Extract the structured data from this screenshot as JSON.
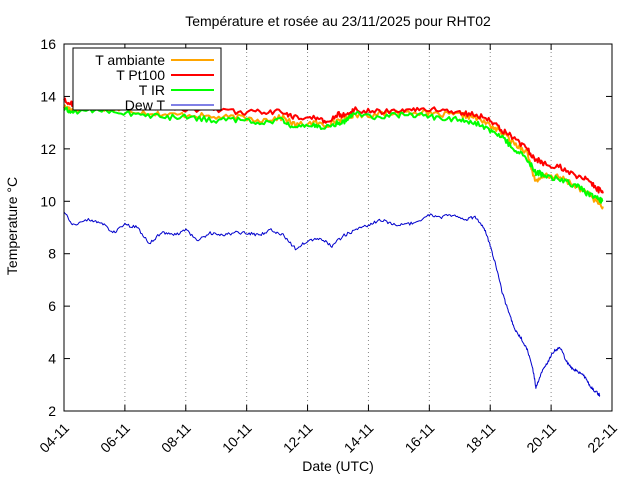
{
  "chart_data": {
    "type": "line",
    "title": "Température et rosée au 23/11/2025 pour RHT02",
    "xlabel": "Date (UTC)",
    "ylabel": "Temperature °C",
    "xlim": [
      4,
      22
    ],
    "ylim": [
      2,
      16
    ],
    "x_ticks": [
      {
        "value": 4,
        "label": "04-11"
      },
      {
        "value": 6,
        "label": "06-11"
      },
      {
        "value": 8,
        "label": "08-11"
      },
      {
        "value": 10,
        "label": "10-11"
      },
      {
        "value": 12,
        "label": "12-11"
      },
      {
        "value": 14,
        "label": "14-11"
      },
      {
        "value": 16,
        "label": "16-11"
      },
      {
        "value": 18,
        "label": "18-11"
      },
      {
        "value": 20,
        "label": "20-11"
      },
      {
        "value": 22,
        "label": "22-11"
      }
    ],
    "y_ticks": [
      {
        "value": 2,
        "label": "2"
      },
      {
        "value": 4,
        "label": "4"
      },
      {
        "value": 6,
        "label": "6"
      },
      {
        "value": 8,
        "label": "8"
      },
      {
        "value": 10,
        "label": "10"
      },
      {
        "value": 12,
        "label": "12"
      },
      {
        "value": 14,
        "label": "14"
      },
      {
        "value": 16,
        "label": "16"
      }
    ],
    "legend_position": "top-left",
    "series": [
      {
        "name": "T ambiante",
        "color": "#ffa500",
        "x": [
          4.0,
          4.3,
          5.0,
          5.8,
          6.6,
          7.4,
          8.2,
          9.0,
          9.8,
          10.5,
          11.2,
          11.6,
          12.2,
          12.6,
          13.0,
          13.3,
          13.5,
          14.2,
          15.0,
          15.6,
          16.3,
          17.0,
          17.5,
          18.0,
          18.4,
          18.8,
          19.2,
          19.5,
          19.8,
          20.3,
          20.8,
          21.2,
          21.5,
          21.7
        ],
        "values": [
          13.6,
          13.5,
          13.6,
          13.5,
          13.4,
          13.3,
          13.3,
          13.2,
          13.2,
          13.1,
          13.2,
          12.9,
          13.0,
          12.9,
          13.1,
          13.2,
          13.3,
          13.3,
          13.4,
          13.4,
          13.3,
          13.3,
          13.2,
          12.9,
          12.6,
          12.2,
          11.9,
          10.7,
          11.0,
          10.9,
          10.6,
          10.3,
          10.0,
          9.8
        ]
      },
      {
        "name": "T Pt100",
        "color": "#ff0000",
        "x": [
          4.0,
          4.3,
          5.0,
          5.8,
          6.6,
          7.4,
          8.2,
          9.0,
          9.8,
          10.5,
          11.2,
          11.6,
          12.2,
          12.6,
          13.0,
          13.3,
          13.5,
          14.2,
          15.0,
          15.6,
          16.3,
          17.0,
          17.5,
          18.0,
          18.4,
          18.8,
          19.2,
          19.5,
          19.8,
          20.3,
          20.8,
          21.2,
          21.5,
          21.7
        ],
        "values": [
          13.9,
          13.7,
          13.8,
          13.7,
          13.6,
          13.6,
          13.5,
          13.5,
          13.4,
          13.4,
          13.4,
          13.2,
          13.2,
          13.0,
          13.3,
          13.3,
          13.5,
          13.4,
          13.5,
          13.5,
          13.5,
          13.4,
          13.3,
          13.1,
          12.7,
          12.4,
          12.0,
          11.6,
          11.4,
          11.3,
          11.0,
          10.8,
          10.5,
          10.3
        ]
      },
      {
        "name": "T IR",
        "color": "#00ff00",
        "x": [
          4.0,
          4.3,
          5.0,
          5.8,
          6.6,
          7.4,
          8.2,
          9.0,
          9.8,
          10.5,
          11.2,
          11.6,
          12.2,
          12.6,
          13.0,
          13.3,
          13.5,
          14.2,
          15.0,
          15.6,
          16.3,
          17.0,
          17.5,
          18.0,
          18.4,
          18.8,
          19.2,
          19.5,
          19.8,
          20.3,
          20.8,
          21.2,
          21.5,
          21.7
        ],
        "values": [
          13.5,
          13.4,
          13.5,
          13.4,
          13.3,
          13.2,
          13.2,
          13.1,
          13.1,
          13.0,
          13.1,
          12.8,
          12.9,
          12.8,
          13.0,
          13.1,
          13.4,
          13.2,
          13.3,
          13.3,
          13.2,
          13.1,
          13.0,
          12.7,
          12.4,
          12.0,
          11.6,
          11.1,
          11.0,
          10.8,
          10.6,
          10.3,
          10.1,
          10.0
        ]
      },
      {
        "name": "Dew T",
        "color": "#0000cc",
        "x": [
          4.0,
          4.3,
          4.8,
          5.2,
          5.6,
          6.0,
          6.4,
          6.8,
          7.2,
          7.6,
          8.0,
          8.4,
          8.8,
          9.2,
          9.6,
          10.0,
          10.4,
          10.8,
          11.2,
          11.6,
          12.0,
          12.4,
          12.8,
          13.2,
          13.6,
          14.0,
          14.4,
          14.8,
          15.2,
          15.6,
          16.0,
          16.4,
          16.8,
          17.2,
          17.5,
          17.8,
          18.0,
          18.2,
          18.4,
          18.6,
          18.8,
          19.0,
          19.2,
          19.4,
          19.5,
          19.7,
          19.9,
          20.1,
          20.3,
          20.5,
          20.7,
          20.9,
          21.1,
          21.3,
          21.5,
          21.6
        ],
        "values": [
          9.6,
          9.1,
          9.3,
          9.2,
          8.8,
          9.1,
          9.0,
          8.4,
          8.8,
          8.7,
          8.9,
          8.5,
          8.8,
          8.7,
          8.8,
          8.8,
          8.7,
          8.9,
          8.7,
          8.2,
          8.5,
          8.6,
          8.3,
          8.7,
          8.9,
          9.1,
          9.3,
          9.1,
          9.1,
          9.2,
          9.5,
          9.4,
          9.5,
          9.3,
          9.4,
          9.0,
          8.3,
          7.5,
          6.5,
          5.8,
          5.1,
          4.8,
          4.4,
          3.6,
          2.9,
          3.5,
          3.9,
          4.3,
          4.4,
          3.9,
          3.6,
          3.5,
          3.3,
          2.9,
          2.7,
          2.6
        ]
      }
    ]
  }
}
